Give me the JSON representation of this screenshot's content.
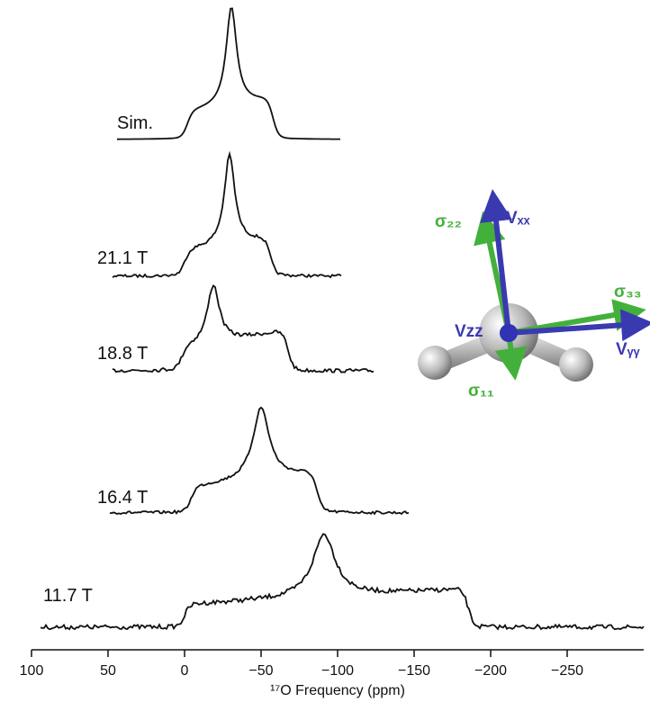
{
  "chart_data": {
    "type": "spectra",
    "x_label": "¹⁷O Frequency (ppm)",
    "xlim": [
      100,
      -300
    ],
    "xticks": [
      100,
      50,
      0,
      {
        "value": -50,
        "label": "−50"
      },
      {
        "value": -100,
        "label": "−100"
      },
      {
        "value": -150,
        "label": "−150"
      },
      {
        "value": -200,
        "label": "−200"
      },
      {
        "value": -250,
        "label": "−250"
      }
    ],
    "spectrum_labels": [
      "Sim.",
      "21.1 T",
      "18.8 T",
      "16.4 T",
      "11.7 T"
    ],
    "tensor_labels": {
      "sigma22": "σ₂₂",
      "vxx": "Vₓₓ",
      "sigma33": "σ₃₃",
      "vyy": "Vᵧᵧ",
      "vzz": "Vzz",
      "sigma11": "σ₁₁"
    }
  }
}
